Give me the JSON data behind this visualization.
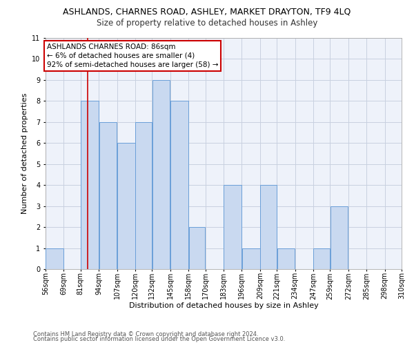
{
  "title": "ASHLANDS, CHARNES ROAD, ASHLEY, MARKET DRAYTON, TF9 4LQ",
  "subtitle": "Size of property relative to detached houses in Ashley",
  "xlabel": "Distribution of detached houses by size in Ashley",
  "ylabel": "Number of detached properties",
  "footnote1": "Contains HM Land Registry data © Crown copyright and database right 2024.",
  "footnote2": "Contains public sector information licensed under the Open Government Licence v3.0.",
  "bin_edges": [
    56,
    69,
    81,
    94,
    107,
    120,
    132,
    145,
    158,
    170,
    183,
    196,
    209,
    221,
    234,
    247,
    259,
    272,
    285,
    298,
    310
  ],
  "bin_labels": [
    "56sqm",
    "69sqm",
    "81sqm",
    "94sqm",
    "107sqm",
    "120sqm",
    "132sqm",
    "145sqm",
    "158sqm",
    "170sqm",
    "183sqm",
    "196sqm",
    "209sqm",
    "221sqm",
    "234sqm",
    "247sqm",
    "259sqm",
    "272sqm",
    "285sqm",
    "298sqm",
    "310sqm"
  ],
  "counts": [
    1,
    0,
    8,
    7,
    6,
    7,
    9,
    8,
    2,
    0,
    4,
    1,
    4,
    1,
    0,
    1,
    3,
    0,
    0,
    0
  ],
  "bar_color": "#c9d9f0",
  "bar_edge_color": "#6a9fd8",
  "grid_color": "#c8d0e0",
  "bg_color": "#eef2fa",
  "property_line_x": 86,
  "annotation_title": "ASHLANDS CHARNES ROAD: 86sqm",
  "annotation_line1": "← 6% of detached houses are smaller (4)",
  "annotation_line2": "92% of semi-detached houses are larger (58) →",
  "vline_color": "#cc0000",
  "annotation_box_color": "#ffffff",
  "annotation_box_edge": "#cc0000",
  "ylim": [
    0,
    11
  ],
  "yticks": [
    0,
    1,
    2,
    3,
    4,
    5,
    6,
    7,
    8,
    9,
    10,
    11
  ],
  "title_fontsize": 9,
  "subtitle_fontsize": 8.5,
  "axis_label_fontsize": 8,
  "tick_fontsize": 7,
  "annotation_fontsize": 7.5,
  "footnote_fontsize": 6
}
